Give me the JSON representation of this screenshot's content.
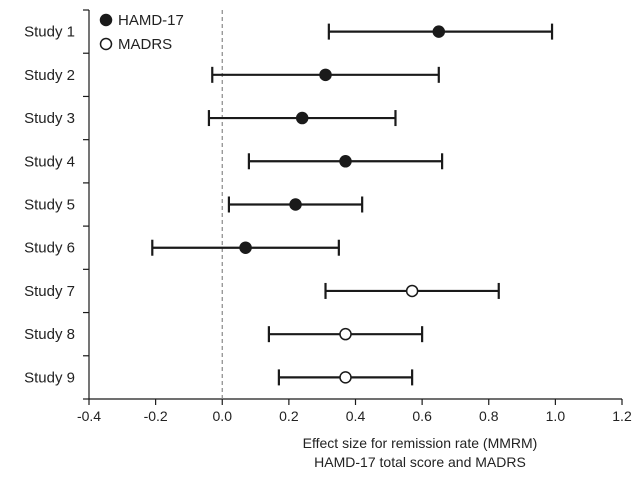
{
  "chart_data": {
    "type": "forest",
    "categories": [
      "Study 1",
      "Study 2",
      "Study 3",
      "Study 4",
      "Study 5",
      "Study 6",
      "Study 7",
      "Study 8",
      "Study 9"
    ],
    "series": [
      {
        "name": "HAMD-17",
        "marker": "filled-circle",
        "points": [
          {
            "category": "Study 1",
            "estimate": 0.65,
            "lower": 0.32,
            "upper": 0.99
          },
          {
            "category": "Study 2",
            "estimate": 0.31,
            "lower": -0.03,
            "upper": 0.65
          },
          {
            "category": "Study 3",
            "estimate": 0.24,
            "lower": -0.04,
            "upper": 0.52
          },
          {
            "category": "Study 4",
            "estimate": 0.37,
            "lower": 0.08,
            "upper": 0.66
          },
          {
            "category": "Study 5",
            "estimate": 0.22,
            "lower": 0.02,
            "upper": 0.42
          },
          {
            "category": "Study 6",
            "estimate": 0.07,
            "lower": -0.21,
            "upper": 0.35
          }
        ]
      },
      {
        "name": "MADRS",
        "marker": "open-circle",
        "points": [
          {
            "category": "Study 7",
            "estimate": 0.57,
            "lower": 0.31,
            "upper": 0.83
          },
          {
            "category": "Study 8",
            "estimate": 0.37,
            "lower": 0.14,
            "upper": 0.6
          },
          {
            "category": "Study 9",
            "estimate": 0.37,
            "lower": 0.17,
            "upper": 0.57
          }
        ]
      }
    ],
    "xlim": [
      -0.4,
      1.2
    ],
    "xticks": [
      -0.4,
      -0.2,
      0.0,
      0.2,
      0.4,
      0.6,
      0.8,
      1.0,
      1.2
    ],
    "xtick_labels": [
      "-0.4",
      "-0.2",
      "0.0",
      "0.2",
      "0.4",
      "0.6",
      "0.8",
      "1.0",
      "1.2"
    ],
    "reference_line": 0.0,
    "xlabel": [
      "Effect size for remission rate (MMRM)",
      "HAMD-17 total score and MADRS"
    ],
    "legend": [
      {
        "label": "HAMD-17",
        "marker": "filled-circle"
      },
      {
        "label": "MADRS",
        "marker": "open-circle"
      }
    ],
    "legend_position": "top-left",
    "grid": false,
    "colors": {
      "ink": "#1a1a1a",
      "reference_line": "#888888"
    }
  }
}
